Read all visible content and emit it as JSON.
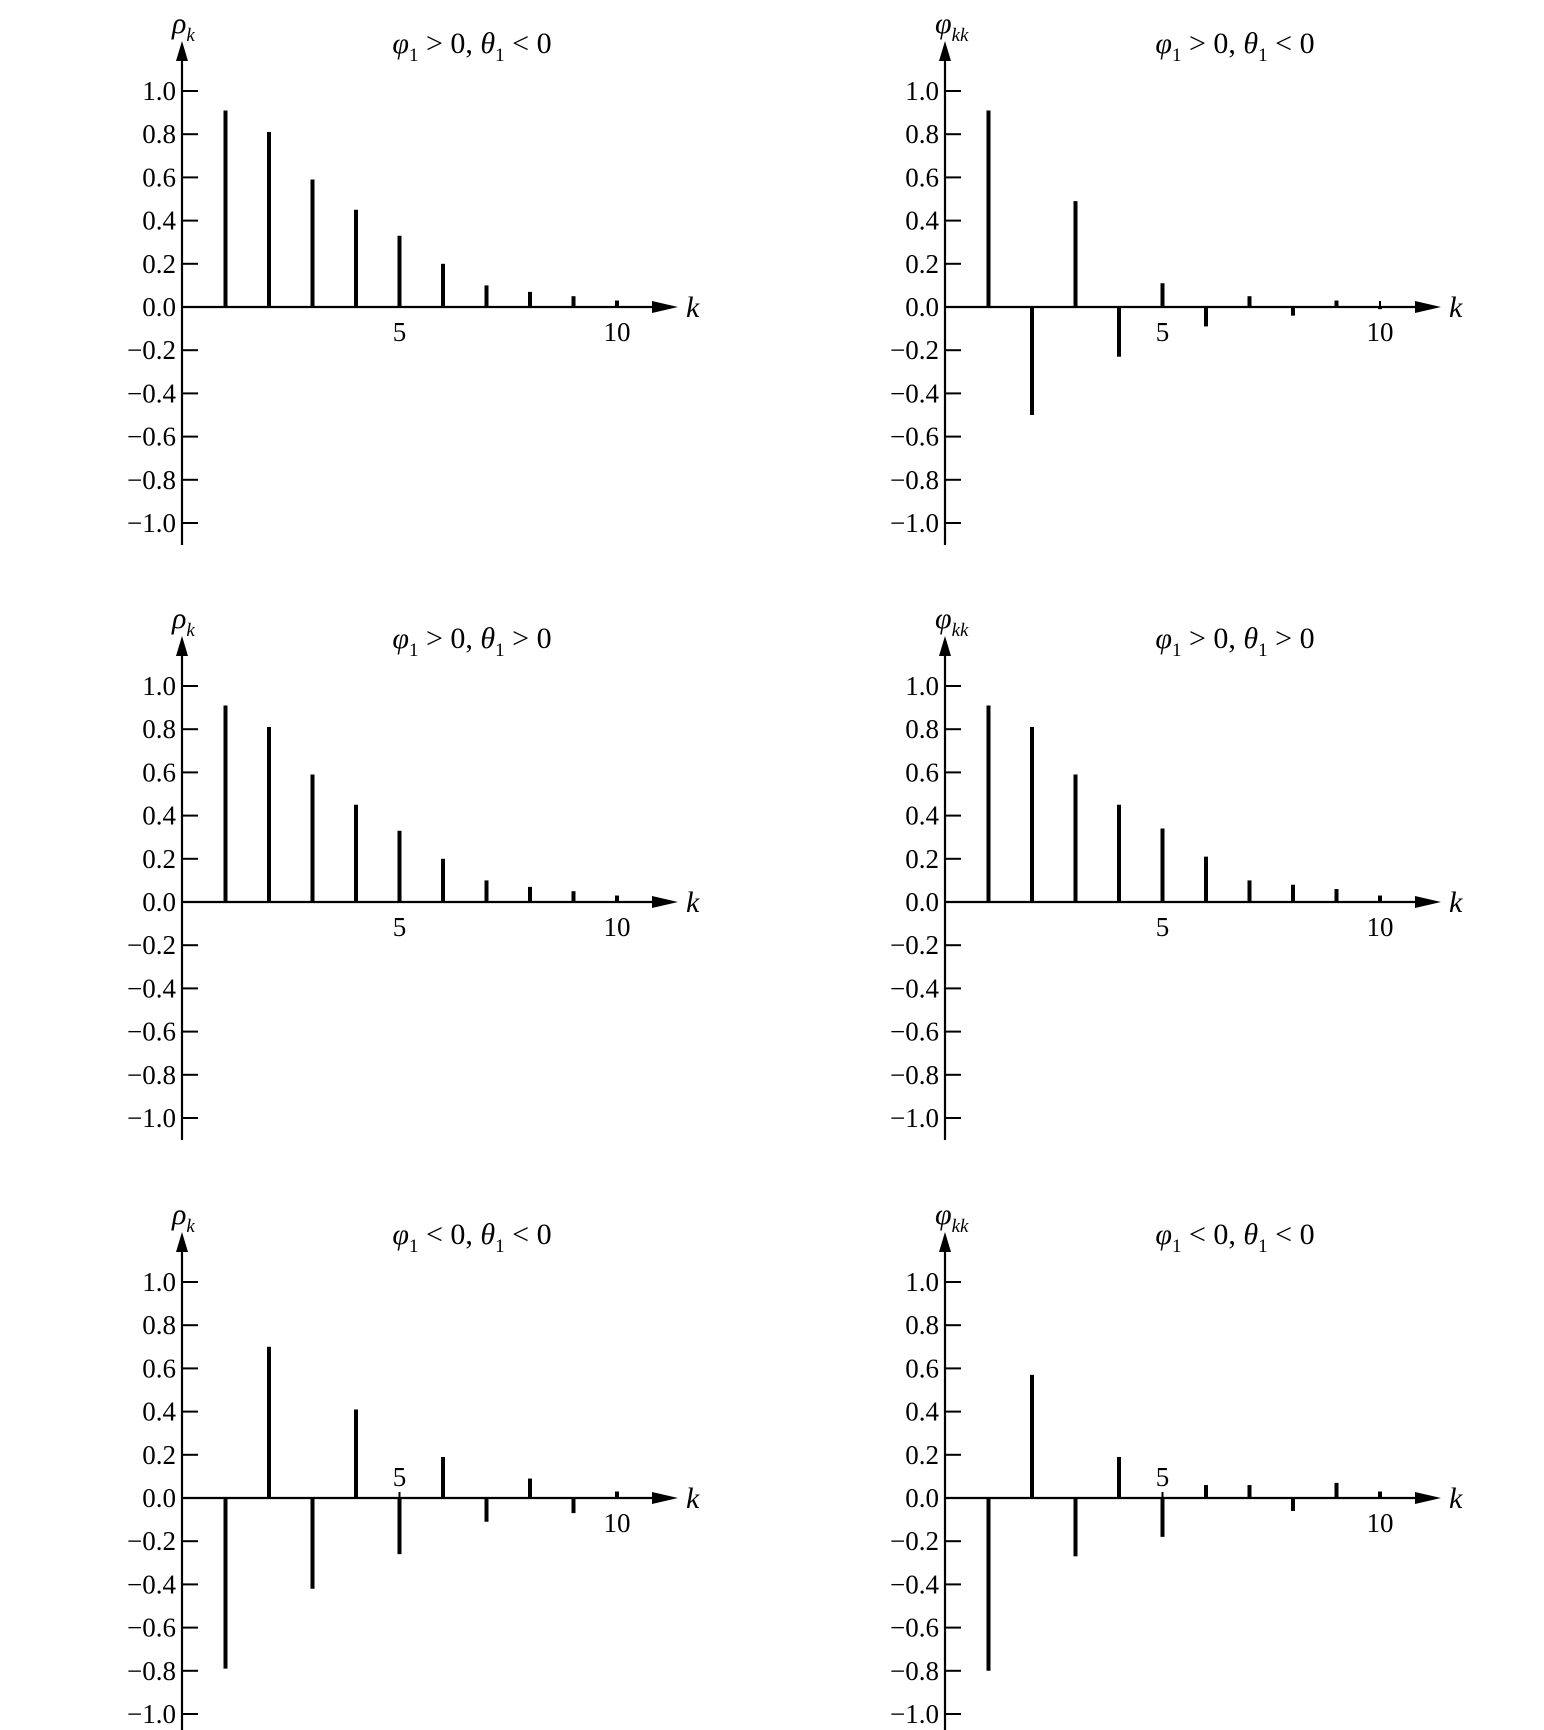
{
  "chart_data": [
    {
      "type": "bar",
      "title": {
        "p1": "φ",
        "p1sub": "1",
        "r1": " > 0, ",
        "p2": "θ",
        "p2sub": "1",
        "r2": " < 0"
      },
      "ylabel": {
        "sym": "ρ",
        "sub": "k"
      },
      "xlabel": "k",
      "ylim": [
        -1.0,
        1.0
      ],
      "yticks": [
        "1.0",
        "0.8",
        "0.6",
        "0.4",
        "0.2",
        "0.0",
        "−0.2",
        "−0.4",
        "−0.6",
        "−0.8",
        "−1.0"
      ],
      "xticks": [
        {
          "k": 5,
          "label": "5"
        },
        {
          "k": 10,
          "label": "10"
        }
      ],
      "x": [
        1,
        2,
        3,
        4,
        5,
        6,
        7,
        8,
        9,
        10
      ],
      "values": [
        0.91,
        0.81,
        0.59,
        0.45,
        0.33,
        0.2,
        0.1,
        0.07,
        0.05,
        0.03
      ]
    },
    {
      "type": "bar",
      "title": {
        "p1": "φ",
        "p1sub": "1",
        "r1": " > 0, ",
        "p2": "θ",
        "p2sub": "1",
        "r2": " < 0"
      },
      "ylabel": {
        "sym": "φ",
        "sub": "kk"
      },
      "xlabel": "k",
      "ylim": [
        -1.0,
        1.0
      ],
      "yticks": [
        "1.0",
        "0.8",
        "0.6",
        "0.4",
        "0.2",
        "0.0",
        "−0.2",
        "−0.4",
        "−0.6",
        "−0.8",
        "−1.0"
      ],
      "xticks": [
        {
          "k": 5,
          "label": "5"
        },
        {
          "k": 10,
          "label": "10"
        }
      ],
      "x": [
        1,
        2,
        3,
        4,
        5,
        6,
        7,
        8,
        9,
        10
      ],
      "values": [
        0.91,
        -0.5,
        0.49,
        -0.23,
        0.11,
        -0.09,
        0.05,
        -0.04,
        0.03,
        -0.01
      ]
    },
    {
      "type": "bar",
      "title": {
        "p1": "φ",
        "p1sub": "1",
        "r1": " > 0, ",
        "p2": "θ",
        "p2sub": "1",
        "r2": " > 0"
      },
      "ylabel": {
        "sym": "ρ",
        "sub": "k"
      },
      "xlabel": "k",
      "ylim": [
        -1.0,
        1.0
      ],
      "yticks": [
        "1.0",
        "0.8",
        "0.6",
        "0.4",
        "0.2",
        "0.0",
        "−0.2",
        "−0.4",
        "−0.6",
        "−0.8",
        "−1.0"
      ],
      "xticks": [
        {
          "k": 5,
          "label": "5"
        },
        {
          "k": 10,
          "label": "10"
        }
      ],
      "x": [
        1,
        2,
        3,
        4,
        5,
        6,
        7,
        8,
        9,
        10
      ],
      "values": [
        0.91,
        0.81,
        0.59,
        0.45,
        0.33,
        0.2,
        0.1,
        0.07,
        0.05,
        0.03
      ]
    },
    {
      "type": "bar",
      "title": {
        "p1": "φ",
        "p1sub": "1",
        "r1": " > 0, ",
        "p2": "θ",
        "p2sub": "1",
        "r2": " > 0"
      },
      "ylabel": {
        "sym": "φ",
        "sub": "kk"
      },
      "xlabel": "k",
      "ylim": [
        -1.0,
        1.0
      ],
      "yticks": [
        "1.0",
        "0.8",
        "0.6",
        "0.4",
        "0.2",
        "0.0",
        "−0.2",
        "−0.4",
        "−0.6",
        "−0.8",
        "−1.0"
      ],
      "xticks": [
        {
          "k": 5,
          "label": "5"
        },
        {
          "k": 10,
          "label": "10"
        }
      ],
      "x": [
        1,
        2,
        3,
        4,
        5,
        6,
        7,
        8,
        9,
        10
      ],
      "values": [
        0.91,
        0.81,
        0.59,
        0.45,
        0.34,
        0.21,
        0.1,
        0.08,
        0.06,
        0.03
      ]
    },
    {
      "type": "bar",
      "title": {
        "p1": "φ",
        "p1sub": "1",
        "r1": " < 0, ",
        "p2": "θ",
        "p2sub": "1",
        "r2": " < 0"
      },
      "ylabel": {
        "sym": "ρ",
        "sub": "k"
      },
      "xlabel": "k",
      "ylim": [
        -1.0,
        1.0
      ],
      "yticks": [
        "1.0",
        "0.8",
        "0.6",
        "0.4",
        "0.2",
        "0.0",
        "−0.2",
        "−0.4",
        "−0.6",
        "−0.8",
        "−1.0"
      ],
      "xticks": [
        {
          "k": 5,
          "label": "5"
        },
        {
          "k": 10,
          "label": "10"
        }
      ],
      "x": [
        1,
        2,
        3,
        4,
        5,
        6,
        7,
        8,
        9,
        10
      ],
      "values": [
        -0.79,
        0.7,
        -0.42,
        0.41,
        -0.26,
        0.19,
        -0.11,
        0.09,
        -0.07,
        0.03
      ]
    },
    {
      "type": "bar",
      "title": {
        "p1": "φ",
        "p1sub": "1",
        "r1": " < 0, ",
        "p2": "θ",
        "p2sub": "1",
        "r2": " < 0"
      },
      "ylabel": {
        "sym": "φ",
        "sub": "kk"
      },
      "xlabel": "k",
      "ylim": [
        -1.0,
        1.0
      ],
      "yticks": [
        "1.0",
        "0.8",
        "0.6",
        "0.4",
        "0.2",
        "0.0",
        "−0.2",
        "−0.4",
        "−0.6",
        "−0.8",
        "−1.0"
      ],
      "xticks": [
        {
          "k": 5,
          "label": "5"
        },
        {
          "k": 10,
          "label": "10"
        }
      ],
      "x": [
        1,
        2,
        3,
        4,
        5,
        6,
        7,
        8,
        9,
        10
      ],
      "values": [
        -0.8,
        0.57,
        -0.27,
        0.19,
        -0.18,
        0.06,
        0.06,
        -0.06,
        0.07,
        0.03
      ]
    }
  ]
}
